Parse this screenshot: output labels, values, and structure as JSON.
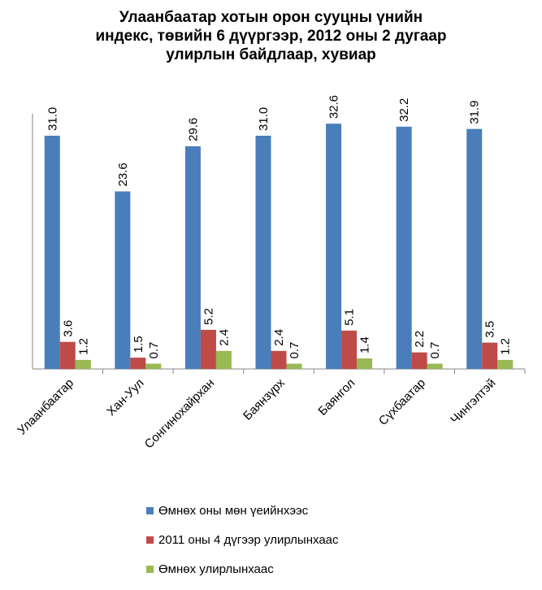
{
  "chart_data": {
    "type": "bar",
    "title": [
      "Улаанбаатар хотын орон сууцны үнийн",
      "индекс, төвийн 6 дүүргээр, 2012 оны 2 дугаар",
      "улирлын байдлаар, хувиар"
    ],
    "categories": [
      "Улаанбаатар",
      "Хан-Уул",
      "Сонгинохайрхан",
      "Баянзүрх",
      "Баянгол",
      "Сүхбаатар",
      "Чингэлтэй"
    ],
    "series": [
      {
        "name": "Өмнөх оны мөн үеийнхээс",
        "color": "#4a7ebb",
        "values": [
          31.0,
          23.6,
          29.6,
          31.0,
          32.6,
          32.2,
          31.9
        ]
      },
      {
        "name": "2011 оны 4 дүгээр улирлынхаас",
        "color": "#be4b48",
        "values": [
          3.6,
          1.5,
          5.2,
          2.4,
          5.1,
          2.2,
          3.5
        ]
      },
      {
        "name": "Өмнөх улирлынхаас",
        "color": "#98b954",
        "values": [
          1.2,
          0.7,
          2.4,
          0.7,
          1.4,
          0.7,
          1.2
        ]
      }
    ],
    "ylim": [
      0,
      35
    ],
    "grid": false,
    "legend_position": "bottom",
    "data_label_format": "0.0"
  }
}
